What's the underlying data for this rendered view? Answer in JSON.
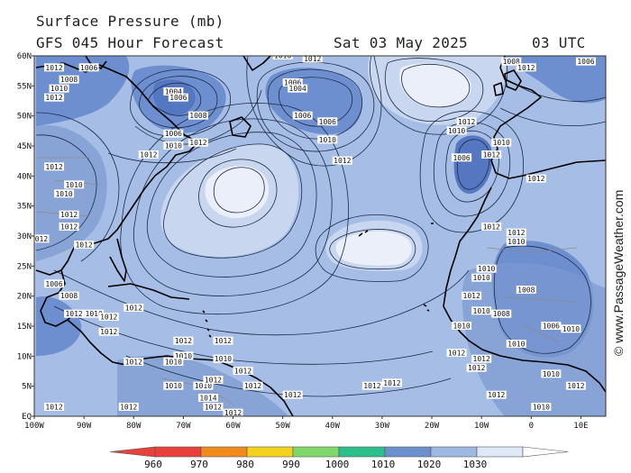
{
  "header": {
    "title": "Surface Pressure (mb)",
    "forecast": "GFS 045 Hour Forecast",
    "date": "Sat 03 May 2025",
    "time": "03 UTC"
  },
  "credit": "© www.PassageWeather.com",
  "axes": {
    "lat_labels": [
      "60N",
      "55N",
      "50N",
      "45N",
      "40N",
      "35N",
      "30N",
      "25N",
      "20N",
      "15N",
      "10N",
      "5N",
      "EQ"
    ],
    "lon_labels": [
      "100W",
      "90W",
      "80W",
      "70W",
      "60W",
      "50W",
      "40W",
      "30W",
      "20W",
      "10W",
      "0",
      "10E"
    ]
  },
  "colorbar": {
    "labels": [
      "960",
      "970",
      "980",
      "990",
      "1000",
      "1010",
      "1020",
      "1030"
    ],
    "colors": [
      "#e8403a",
      "#f08a1c",
      "#f4d21c",
      "#7ed96a",
      "#2cbf8c",
      "#6c8fcf",
      "#9db8e2",
      "#dfe8f6"
    ]
  },
  "palette": {
    "ocean": "#a6bee5",
    "low": "#6d8fd0",
    "deep_low": "#5577c2",
    "high": "#c8d7ef",
    "core_high": "#eaeffa",
    "land": "#7c99d2",
    "isobar": "#1c2a44",
    "coast": "#000000"
  },
  "pressure_labels": [
    {
      "t": "1012",
      "lon": -96,
      "lat": 58
    },
    {
      "t": "1006",
      "lon": -89,
      "lat": 58
    },
    {
      "t": "1008",
      "lon": -93,
      "lat": 56
    },
    {
      "t": "1010",
      "lon": -95,
      "lat": 54.5
    },
    {
      "t": "1012",
      "lon": -96,
      "lat": 53
    },
    {
      "t": "1004",
      "lon": -72,
      "lat": 54
    },
    {
      "t": "1006",
      "lon": -71,
      "lat": 53
    },
    {
      "t": "1008",
      "lon": -67,
      "lat": 50
    },
    {
      "t": "1006",
      "lon": -72,
      "lat": 47
    },
    {
      "t": "1010",
      "lon": -72,
      "lat": 45
    },
    {
      "t": "1012",
      "lon": -67,
      "lat": 45.5
    },
    {
      "t": "1012",
      "lon": -77,
      "lat": 43.5
    },
    {
      "t": "1012",
      "lon": -96,
      "lat": 41.5
    },
    {
      "t": "1010",
      "lon": -92,
      "lat": 38.5
    },
    {
      "t": "1010",
      "lon": -94,
      "lat": 37
    },
    {
      "t": "1012",
      "lon": -93,
      "lat": 33.5
    },
    {
      "t": "1012",
      "lon": -93,
      "lat": 31.5
    },
    {
      "t": "1012",
      "lon": -99,
      "lat": 29.5
    },
    {
      "t": "1012",
      "lon": -90,
      "lat": 28.5
    },
    {
      "t": "1010",
      "lon": -50,
      "lat": 60
    },
    {
      "t": "1012",
      "lon": -44,
      "lat": 59.5
    },
    {
      "t": "1006",
      "lon": -48,
      "lat": 55.5
    },
    {
      "t": "1004",
      "lon": -47,
      "lat": 54.5
    },
    {
      "t": "1006",
      "lon": -46,
      "lat": 50
    },
    {
      "t": "1006",
      "lon": -41,
      "lat": 49
    },
    {
      "t": "1010",
      "lon": -41,
      "lat": 46
    },
    {
      "t": "1012",
      "lon": -38,
      "lat": 42.5
    },
    {
      "t": "1008",
      "lon": -4,
      "lat": 59
    },
    {
      "t": "1012",
      "lon": -1,
      "lat": 58
    },
    {
      "t": "1006",
      "lon": 11,
      "lat": 59
    },
    {
      "t": "1012",
      "lon": -13,
      "lat": 49
    },
    {
      "t": "1010",
      "lon": -15,
      "lat": 47.5
    },
    {
      "t": "1010",
      "lon": -6,
      "lat": 45.5
    },
    {
      "t": "1012",
      "lon": -8,
      "lat": 43.5
    },
    {
      "t": "1006",
      "lon": -14,
      "lat": 43
    },
    {
      "t": "1012",
      "lon": 1,
      "lat": 39.5
    },
    {
      "t": "1012",
      "lon": -8,
      "lat": 31.5
    },
    {
      "t": "1012",
      "lon": -3,
      "lat": 30.5
    },
    {
      "t": "1010",
      "lon": -3,
      "lat": 29
    },
    {
      "t": "1010",
      "lon": -9,
      "lat": 24.5
    },
    {
      "t": "1010",
      "lon": -10,
      "lat": 23
    },
    {
      "t": "1008",
      "lon": -1,
      "lat": 21
    },
    {
      "t": "1012",
      "lon": -12,
      "lat": 20
    },
    {
      "t": "1010",
      "lon": -10,
      "lat": 17.5
    },
    {
      "t": "1008",
      "lon": -6,
      "lat": 17
    },
    {
      "t": "1010",
      "lon": -14,
      "lat": 15
    },
    {
      "t": "1006",
      "lon": 4,
      "lat": 15
    },
    {
      "t": "1010",
      "lon": 8,
      "lat": 14.5
    },
    {
      "t": "1012",
      "lon": -15,
      "lat": 10.5
    },
    {
      "t": "1010",
      "lon": -3,
      "lat": 12
    },
    {
      "t": "1012",
      "lon": -10,
      "lat": 9.5
    },
    {
      "t": "1012",
      "lon": -11,
      "lat": 8
    },
    {
      "t": "1010",
      "lon": 4,
      "lat": 7
    },
    {
      "t": "1012",
      "lon": 9,
      "lat": 5
    },
    {
      "t": "1012",
      "lon": -7,
      "lat": 3.5
    },
    {
      "t": "1010",
      "lon": 2,
      "lat": 1.5
    },
    {
      "t": "1006",
      "lon": -96,
      "lat": 22
    },
    {
      "t": "1008",
      "lon": -93,
      "lat": 20
    },
    {
      "t": "1012",
      "lon": -92,
      "lat": 17
    },
    {
      "t": "1010",
      "lon": -88,
      "lat": 17
    },
    {
      "t": "1012",
      "lon": -85,
      "lat": 16.5
    },
    {
      "t": "1012",
      "lon": -80,
      "lat": 18
    },
    {
      "t": "1012",
      "lon": -85,
      "lat": 14
    },
    {
      "t": "1012",
      "lon": -70,
      "lat": 12.5
    },
    {
      "t": "1012",
      "lon": -62,
      "lat": 12.5
    },
    {
      "t": "1010",
      "lon": -70,
      "lat": 10
    },
    {
      "t": "1012",
      "lon": -80,
      "lat": 9
    },
    {
      "t": "1010",
      "lon": -72,
      "lat": 9
    },
    {
      "t": "1010",
      "lon": -62,
      "lat": 9.5
    },
    {
      "t": "1012",
      "lon": -58,
      "lat": 7.5
    },
    {
      "t": "1010",
      "lon": -72,
      "lat": 5
    },
    {
      "t": "1010",
      "lon": -66,
      "lat": 5
    },
    {
      "t": "1014",
      "lon": -65,
      "lat": 3
    },
    {
      "t": "1012",
      "lon": -56,
      "lat": 5
    },
    {
      "t": "1012",
      "lon": -64,
      "lat": 1.5
    },
    {
      "t": "1012",
      "lon": -60,
      "lat": 0.5
    },
    {
      "t": "1012",
      "lon": -81,
      "lat": 1.5
    },
    {
      "t": "1012",
      "lon": -96,
      "lat": 1.5
    },
    {
      "t": "1012",
      "lon": -48,
      "lat": 3.5
    },
    {
      "t": "1012",
      "lon": -32,
      "lat": 5
    },
    {
      "t": "1012",
      "lon": -28,
      "lat": 5.5
    },
    {
      "t": "1012",
      "lon": -64,
      "lat": 6
    }
  ]
}
